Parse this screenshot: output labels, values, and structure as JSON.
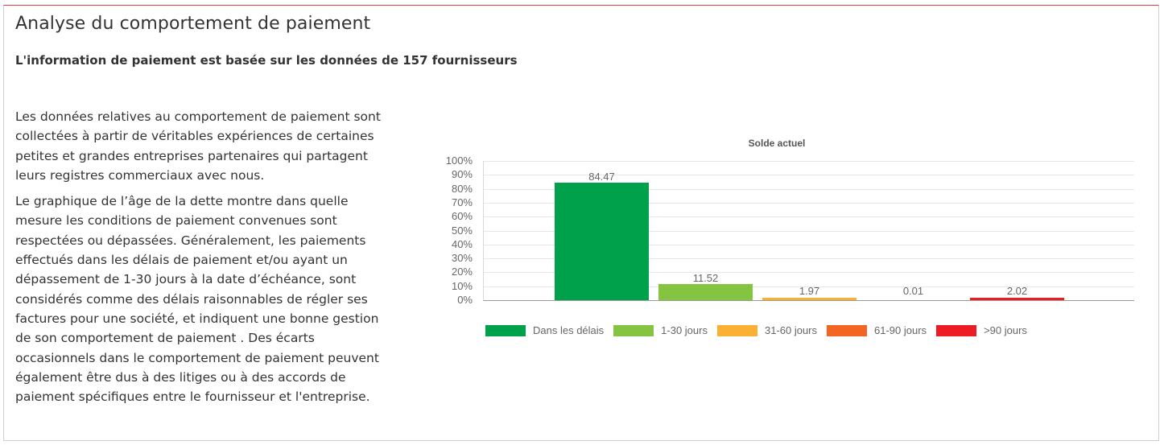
{
  "panel": {
    "title": "Analyse du comportement de paiement",
    "subtitle": "L'information de paiement est basée sur les données de 157 fournisseurs",
    "paragraphs": [
      "Les données relatives au comportement de paiement sont collectées à partir de véritables expériences de certaines petites et grandes entreprises partenaires qui partagent leurs registres commerciaux avec nous.",
      "Le graphique de l’âge de la dette montre dans quelle mesure les conditions de paiement convenues sont respectées ou dépassées. Généralement, les paiements effectués dans les délais de paiement et/ou ayant un dépassement de 1-30 jours à la date d’échéance, sont considérés comme des délais raisonnables de régler ses factures pour une société, et indiquent une bonne gestion de son comportement de paiement . Des écarts occasionnels dans le comportement de paiement peuvent également être dus à des litiges ou à des accords de paiement spécifiques entre le fournisseur et l'entreprise."
    ]
  },
  "chart_data": {
    "type": "bar",
    "title": "Solde actuel",
    "xlabel": "",
    "ylabel": "",
    "ylim": [
      0,
      100
    ],
    "yticks": [
      "100%",
      "90%",
      "80%",
      "70%",
      "60%",
      "50%",
      "40%",
      "30%",
      "20%",
      "10%",
      "0%"
    ],
    "grid": true,
    "legend_position": "bottom",
    "categories": [
      "Dans les délais",
      "1-30 jours",
      "31-60 jours",
      "61-90 jours",
      ">90 jours"
    ],
    "values": [
      84.47,
      11.52,
      1.97,
      0.01,
      2.02
    ],
    "value_labels": [
      "84.47",
      "11.52",
      "1.97",
      "0.01",
      "2.02"
    ],
    "colors": [
      "#00a14b",
      "#85c441",
      "#fbb034",
      "#f26522",
      "#ed1c24"
    ]
  }
}
